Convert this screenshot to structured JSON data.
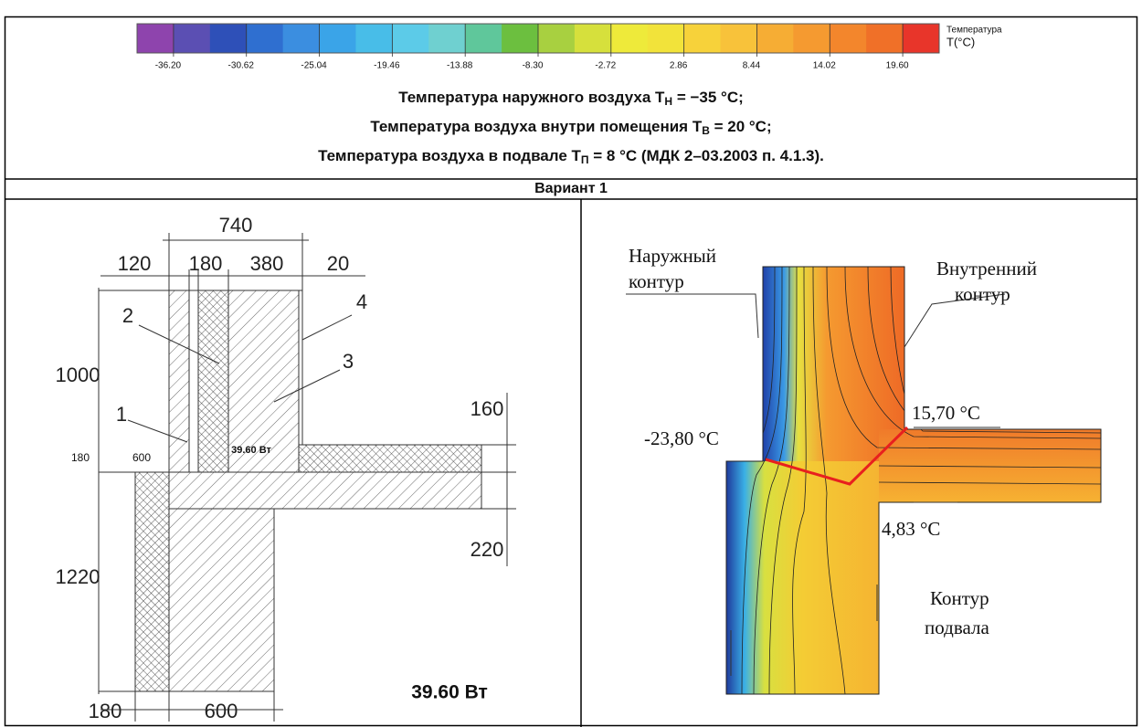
{
  "colorbar": {
    "colors": [
      "#8e44ad",
      "#5b4fb3",
      "#2e50b8",
      "#2f6fd0",
      "#3b8ee0",
      "#3aa4e8",
      "#48bde8",
      "#5ccbe8",
      "#6fd0d0",
      "#5fc79b",
      "#6cbf3f",
      "#a8d040",
      "#d6e03c",
      "#eeea3a",
      "#f2e33a",
      "#f7d23a",
      "#f8c23a",
      "#f6ad34",
      "#f59a30",
      "#f3862c",
      "#f07028",
      "#e8352a"
    ],
    "ticks": [
      "-36.20",
      "-30.62",
      "-25.04",
      "-19.46",
      "-13.88",
      "-8.30",
      "-2.72",
      "2.86",
      "8.44",
      "14.02",
      "19.60"
    ],
    "title": "Температура",
    "unit": "T(°C)"
  },
  "conditions": [
    {
      "text": "Температура наружного воздуха T",
      "sub": "Н",
      "rest": " = −35 °C;"
    },
    {
      "text": "Температура воздуха внутри помещения T",
      "sub": "В",
      "rest": " = 20 °C;"
    },
    {
      "text": "Температура воздуха в подвале T",
      "sub": "П",
      "rest": " = 8 °C (МДК 2–03.2003 п. 4.1.3)."
    }
  ],
  "variant": "Вариант 1",
  "left_drawing": {
    "dimensions": {
      "top_total": "740",
      "top_1": "120",
      "top_2": "180",
      "top_3": "380",
      "top_4": "20",
      "left_upper": "1000",
      "left_small_1": "180",
      "left_small_2": "600",
      "right_slab": "160",
      "right_below": "220",
      "left_lower": "1220",
      "bottom_1": "180",
      "bottom_2": "600"
    },
    "callouts": [
      "1",
      "2",
      "3",
      "4"
    ],
    "heat_small": "39.60 Вт",
    "heat": "39.60 Вт"
  },
  "right_drawing": {
    "outer_contour": [
      "Наружный",
      "контур"
    ],
    "inner_contour": [
      "Внутренний",
      "контур"
    ],
    "basement_contour": [
      "Контур",
      "подвала"
    ],
    "temps": [
      "15,70 °C",
      "-23,80 °C",
      "4,83 °C"
    ]
  }
}
